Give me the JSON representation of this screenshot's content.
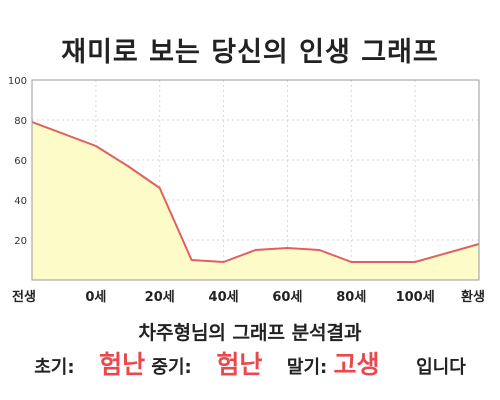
{
  "title": "재미로 보는 당신의 인생 그래프",
  "chart_data": {
    "type": "area",
    "x_tick_labels": [
      "전생",
      "0세",
      "20세",
      "40세",
      "60세",
      "80세",
      "100세",
      "환생"
    ],
    "x_ages": [
      -20,
      0,
      20,
      40,
      60,
      80,
      100,
      120
    ],
    "points": [
      {
        "age": -20,
        "value": 79
      },
      {
        "age": 0,
        "value": 67
      },
      {
        "age": 10,
        "value": 57
      },
      {
        "age": 20,
        "value": 46
      },
      {
        "age": 30,
        "value": 10
      },
      {
        "age": 40,
        "value": 9
      },
      {
        "age": 50,
        "value": 15
      },
      {
        "age": 60,
        "value": 16
      },
      {
        "age": 70,
        "value": 15
      },
      {
        "age": 80,
        "value": 9
      },
      {
        "age": 90,
        "value": 9
      },
      {
        "age": 100,
        "value": 9
      },
      {
        "age": 120,
        "value": 18
      }
    ],
    "ylim": [
      0,
      100
    ],
    "y_ticks": [
      20,
      40,
      60,
      80,
      100
    ],
    "grid": true,
    "line_color": "#e06060",
    "fill_color": "#fdfcc8",
    "grid_color": "#d8d8d8"
  },
  "summary": "차주형님의 그래프 분석결과",
  "result": {
    "early_label": "초기:",
    "early_value": "험난",
    "middle_label": "중기:",
    "middle_value": "험난",
    "late_label": "말기:",
    "late_value": "고생",
    "ending": "입니다"
  }
}
